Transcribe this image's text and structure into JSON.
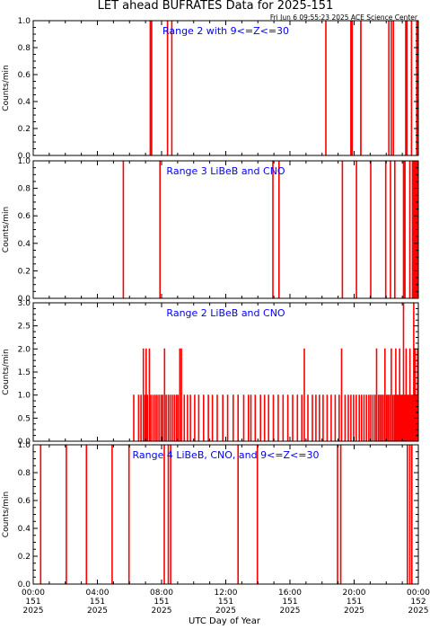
{
  "title": "LET ahead BUFRATES Data for 2025-151",
  "timestamp": "Fri Jun  6 09:55:23 2025 ACE Science Center",
  "xlabel": "UTC Day of Year",
  "colors": {
    "trace": "#ff0000",
    "panel_label": "#0000ff",
    "axes": "#000000"
  },
  "x_axis": {
    "range_hours": [
      0,
      24
    ],
    "ticks": [
      {
        "hour": 0,
        "time": "00:00",
        "doy": "151",
        "year": "2025"
      },
      {
        "hour": 4,
        "time": "04:00",
        "doy": "151",
        "year": "2025"
      },
      {
        "hour": 8,
        "time": "08:00",
        "doy": "151",
        "year": "2025"
      },
      {
        "hour": 12,
        "time": "12:00",
        "doy": "151",
        "year": "2025"
      },
      {
        "hour": 16,
        "time": "16:00",
        "doy": "151",
        "year": "2025"
      },
      {
        "hour": 20,
        "time": "20:00",
        "doy": "151",
        "year": "2025"
      },
      {
        "hour": 24,
        "time": "00:00",
        "doy": "152",
        "year": "2025"
      }
    ]
  },
  "chart_data": [
    {
      "type": "line",
      "label": "Range 2 with 9<=Z<=30",
      "ylabel": "Counts/min",
      "ylim": [
        0,
        1
      ],
      "yticks": [
        "0.0",
        "0.2",
        "0.4",
        "0.6",
        "0.8",
        "1.0"
      ],
      "baseline": 0,
      "spikes": [
        {
          "x": 7.28,
          "y": 1
        },
        {
          "x": 7.36,
          "y": 1
        },
        {
          "x": 8.35,
          "y": 1
        },
        {
          "x": 8.62,
          "y": 1
        },
        {
          "x": 18.22,
          "y": 1
        },
        {
          "x": 19.78,
          "y": 1
        },
        {
          "x": 19.86,
          "y": 1
        },
        {
          "x": 20.4,
          "y": 1
        },
        {
          "x": 22.15,
          "y": 1
        },
        {
          "x": 22.3,
          "y": 1
        },
        {
          "x": 22.43,
          "y": 1
        },
        {
          "x": 23.2,
          "y": 1
        },
        {
          "x": 23.28,
          "y": 1
        },
        {
          "x": 23.56,
          "y": 1
        },
        {
          "x": 23.88,
          "y": 1
        },
        {
          "x": 23.95,
          "y": 1
        }
      ]
    },
    {
      "type": "line",
      "label": "Range 3 LiBeB and CNO",
      "ylabel": "Counts/min",
      "ylim": [
        0,
        1
      ],
      "yticks": [
        "0.0",
        "0.2",
        "0.4",
        "0.6",
        "0.8",
        "1.0"
      ],
      "baseline": 0,
      "spikes": [
        {
          "x": 5.6,
          "y": 1
        },
        {
          "x": 7.88,
          "y": 1
        },
        {
          "x": 14.92,
          "y": 1
        },
        {
          "x": 15.3,
          "y": 1
        },
        {
          "x": 19.25,
          "y": 1
        },
        {
          "x": 20.13,
          "y": 1
        },
        {
          "x": 21.02,
          "y": 1
        },
        {
          "x": 21.95,
          "y": 1
        },
        {
          "x": 22.25,
          "y": 1
        },
        {
          "x": 22.52,
          "y": 1
        },
        {
          "x": 23.06,
          "y": 1
        },
        {
          "x": 23.15,
          "y": 1
        },
        {
          "x": 23.45,
          "y": 1
        },
        {
          "x": 23.62,
          "y": 1
        },
        {
          "x": 23.7,
          "y": 1
        },
        {
          "x": 23.78,
          "y": 1
        },
        {
          "x": 23.84,
          "y": 1
        },
        {
          "x": 23.9,
          "y": 1
        },
        {
          "x": 23.96,
          "y": 1
        }
      ]
    },
    {
      "type": "line",
      "label": "Range 2 LiBeB and CNO",
      "ylabel": "Counts/min",
      "ylim": [
        0,
        3
      ],
      "yticks": [
        "0.0",
        "0.5",
        "1.0",
        "1.5",
        "2.0",
        "2.5",
        "3.0"
      ],
      "baseline": 0,
      "spikes": [
        {
          "x": 6.25,
          "y": 1
        },
        {
          "x": 6.55,
          "y": 1
        },
        {
          "x": 6.7,
          "y": 1
        },
        {
          "x": 6.85,
          "y": 2
        },
        {
          "x": 6.95,
          "y": 1
        },
        {
          "x": 7.02,
          "y": 2
        },
        {
          "x": 7.1,
          "y": 1
        },
        {
          "x": 7.22,
          "y": 2
        },
        {
          "x": 7.32,
          "y": 1
        },
        {
          "x": 7.45,
          "y": 1
        },
        {
          "x": 7.58,
          "y": 1
        },
        {
          "x": 7.7,
          "y": 1
        },
        {
          "x": 7.82,
          "y": 1
        },
        {
          "x": 7.95,
          "y": 1
        },
        {
          "x": 8.05,
          "y": 1
        },
        {
          "x": 8.17,
          "y": 2
        },
        {
          "x": 8.27,
          "y": 1
        },
        {
          "x": 8.4,
          "y": 1
        },
        {
          "x": 8.52,
          "y": 1
        },
        {
          "x": 8.65,
          "y": 1
        },
        {
          "x": 8.78,
          "y": 1
        },
        {
          "x": 8.9,
          "y": 1
        },
        {
          "x": 9.0,
          "y": 1
        },
        {
          "x": 9.12,
          "y": 2
        },
        {
          "x": 9.22,
          "y": 2
        },
        {
          "x": 9.4,
          "y": 1
        },
        {
          "x": 9.6,
          "y": 1
        },
        {
          "x": 9.78,
          "y": 1
        },
        {
          "x": 10.05,
          "y": 1
        },
        {
          "x": 10.3,
          "y": 1
        },
        {
          "x": 10.6,
          "y": 1
        },
        {
          "x": 10.9,
          "y": 1
        },
        {
          "x": 11.15,
          "y": 1
        },
        {
          "x": 11.45,
          "y": 1
        },
        {
          "x": 11.8,
          "y": 1
        },
        {
          "x": 12.1,
          "y": 1
        },
        {
          "x": 12.45,
          "y": 1
        },
        {
          "x": 12.75,
          "y": 1
        },
        {
          "x": 13.1,
          "y": 1
        },
        {
          "x": 13.4,
          "y": 1
        },
        {
          "x": 13.55,
          "y": 1
        },
        {
          "x": 13.82,
          "y": 1
        },
        {
          "x": 14.15,
          "y": 1
        },
        {
          "x": 14.4,
          "y": 1
        },
        {
          "x": 14.65,
          "y": 1
        },
        {
          "x": 14.95,
          "y": 1
        },
        {
          "x": 15.25,
          "y": 1
        },
        {
          "x": 15.55,
          "y": 1
        },
        {
          "x": 15.85,
          "y": 1
        },
        {
          "x": 16.15,
          "y": 1
        },
        {
          "x": 16.45,
          "y": 1
        },
        {
          "x": 16.72,
          "y": 1
        },
        {
          "x": 16.88,
          "y": 2
        },
        {
          "x": 17.1,
          "y": 1
        },
        {
          "x": 17.38,
          "y": 1
        },
        {
          "x": 17.6,
          "y": 1
        },
        {
          "x": 17.82,
          "y": 1
        },
        {
          "x": 18.05,
          "y": 1
        },
        {
          "x": 18.3,
          "y": 1
        },
        {
          "x": 18.55,
          "y": 1
        },
        {
          "x": 18.8,
          "y": 1
        },
        {
          "x": 19.05,
          "y": 1
        },
        {
          "x": 19.2,
          "y": 2
        },
        {
          "x": 19.42,
          "y": 1
        },
        {
          "x": 19.62,
          "y": 1
        },
        {
          "x": 19.78,
          "y": 1
        },
        {
          "x": 19.95,
          "y": 1
        },
        {
          "x": 20.12,
          "y": 1
        },
        {
          "x": 20.3,
          "y": 1
        },
        {
          "x": 20.45,
          "y": 1
        },
        {
          "x": 20.6,
          "y": 1
        },
        {
          "x": 20.75,
          "y": 1
        },
        {
          "x": 20.9,
          "y": 1
        },
        {
          "x": 21.02,
          "y": 1
        },
        {
          "x": 21.15,
          "y": 1
        },
        {
          "x": 21.28,
          "y": 1
        },
        {
          "x": 21.38,
          "y": 2
        },
        {
          "x": 21.5,
          "y": 1
        },
        {
          "x": 21.6,
          "y": 1
        },
        {
          "x": 21.7,
          "y": 1
        },
        {
          "x": 21.8,
          "y": 1
        },
        {
          "x": 21.9,
          "y": 2
        },
        {
          "x": 22.0,
          "y": 1
        },
        {
          "x": 22.1,
          "y": 1
        },
        {
          "x": 22.2,
          "y": 1
        },
        {
          "x": 22.3,
          "y": 2
        },
        {
          "x": 22.4,
          "y": 1
        },
        {
          "x": 22.5,
          "y": 1
        },
        {
          "x": 22.58,
          "y": 2
        },
        {
          "x": 22.66,
          "y": 1
        },
        {
          "x": 22.74,
          "y": 1
        },
        {
          "x": 22.82,
          "y": 2
        },
        {
          "x": 22.9,
          "y": 1
        },
        {
          "x": 22.98,
          "y": 1
        },
        {
          "x": 23.06,
          "y": 3
        },
        {
          "x": 23.14,
          "y": 1
        },
        {
          "x": 23.22,
          "y": 2
        },
        {
          "x": 23.3,
          "y": 1
        },
        {
          "x": 23.38,
          "y": 1
        },
        {
          "x": 23.46,
          "y": 2
        },
        {
          "x": 23.54,
          "y": 1
        },
        {
          "x": 23.62,
          "y": 1
        },
        {
          "x": 23.7,
          "y": 3
        },
        {
          "x": 23.78,
          "y": 2
        },
        {
          "x": 23.86,
          "y": 1
        },
        {
          "x": 23.94,
          "y": 2
        }
      ]
    },
    {
      "type": "line",
      "label": "Range 4 LiBeB, CNO, and 9<=Z<=30",
      "ylabel": "Counts/min",
      "ylim": [
        0,
        1
      ],
      "yticks": [
        "0.0",
        "0.2",
        "0.4",
        "0.6",
        "0.8",
        "1.0"
      ],
      "baseline": 0,
      "spikes": [
        {
          "x": 0.45,
          "y": 1
        },
        {
          "x": 2.05,
          "y": 1
        },
        {
          "x": 3.3,
          "y": 1
        },
        {
          "x": 4.9,
          "y": 1
        },
        {
          "x": 5.95,
          "y": 1
        },
        {
          "x": 8.15,
          "y": 1
        },
        {
          "x": 8.4,
          "y": 1
        },
        {
          "x": 8.55,
          "y": 1
        },
        {
          "x": 12.75,
          "y": 1
        },
        {
          "x": 13.95,
          "y": 1
        },
        {
          "x": 18.95,
          "y": 1
        },
        {
          "x": 19.15,
          "y": 1
        },
        {
          "x": 23.3,
          "y": 1
        },
        {
          "x": 23.45,
          "y": 1
        },
        {
          "x": 23.58,
          "y": 1
        }
      ]
    }
  ]
}
